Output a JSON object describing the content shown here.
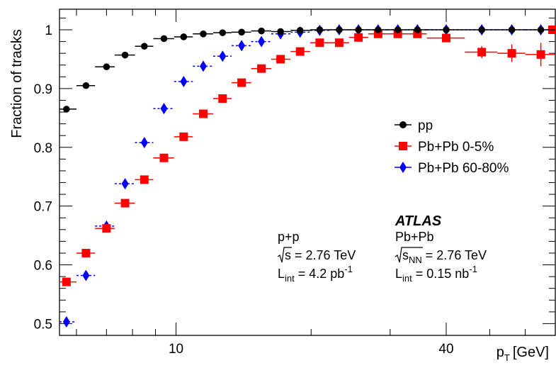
{
  "chart_data": {
    "type": "scatter",
    "xlabel": "p_T [GeV]",
    "xlabel_main": "p",
    "xlabel_sub": "T",
    "xlabel_unit": "[GeV]",
    "ylabel": "Fraction of tracks",
    "x_scale": "log",
    "xlim": [
      5.5,
      70
    ],
    "ylim": [
      0.48,
      1.035
    ],
    "x_ticks": [
      10,
      40
    ],
    "x_tick_labels": [
      "10",
      "40"
    ],
    "y_ticks": [
      0.5,
      0.6,
      0.7,
      0.8,
      0.9,
      1.0
    ],
    "y_tick_labels": [
      "0.5",
      "0.6",
      "0.7",
      "0.8",
      "0.9",
      "1"
    ],
    "grid": false,
    "legend_position": "right",
    "series": [
      {
        "name": "pp",
        "color": "#000000",
        "marker": "circle",
        "points": [
          {
            "x": 5.7,
            "y": 0.865,
            "xerr": [
              5.5,
              6.0
            ]
          },
          {
            "x": 6.3,
            "y": 0.905,
            "xerr": [
              6.0,
              6.6
            ]
          },
          {
            "x": 7.0,
            "y": 0.937,
            "xerr": [
              6.6,
              7.3
            ]
          },
          {
            "x": 7.7,
            "y": 0.957,
            "xerr": [
              7.3,
              8.1
            ]
          },
          {
            "x": 8.5,
            "y": 0.972,
            "xerr": [
              8.1,
              8.9
            ]
          },
          {
            "x": 9.4,
            "y": 0.985,
            "xerr": [
              8.9,
              9.9
            ]
          },
          {
            "x": 10.4,
            "y": 0.988,
            "xerr": [
              9.9,
              10.9
            ]
          },
          {
            "x": 11.5,
            "y": 0.993,
            "xerr": [
              10.9,
              12.1
            ]
          },
          {
            "x": 12.7,
            "y": 0.995,
            "xerr": [
              12.1,
              13.3
            ]
          },
          {
            "x": 14.0,
            "y": 0.996,
            "xerr": [
              13.3,
              14.7
            ]
          },
          {
            "x": 15.5,
            "y": 0.998,
            "xerr": [
              14.7,
              16.3
            ]
          },
          {
            "x": 17.1,
            "y": 0.997,
            "xerr": [
              16.3,
              18.0
            ]
          },
          {
            "x": 18.9,
            "y": 0.999,
            "xerr": [
              18.0,
              19.9
            ]
          },
          {
            "x": 20.9,
            "y": 1.0,
            "xerr": [
              19.9,
              22.0
            ]
          },
          {
            "x": 23.1,
            "y": 1.0,
            "xerr": [
              22.0,
              24.3
            ]
          },
          {
            "x": 25.5,
            "y": 1.0,
            "xerr": [
              24.3,
              26.8
            ]
          },
          {
            "x": 28.2,
            "y": 1.0,
            "xerr": [
              26.8,
              29.6
            ]
          },
          {
            "x": 31.2,
            "y": 1.0,
            "xerr": [
              29.6,
              32.8
            ]
          },
          {
            "x": 34.5,
            "y": 1.0,
            "xerr": [
              32.8,
              36.2
            ]
          },
          {
            "x": 40.0,
            "y": 1.0,
            "xerr": [
              36.2,
              44.0
            ]
          },
          {
            "x": 48.0,
            "y": 1.0,
            "xerr": [
              44.0,
              52.0
            ]
          },
          {
            "x": 56.0,
            "y": 1.0,
            "xerr": [
              52.0,
              60.0
            ]
          },
          {
            "x": 65.0,
            "y": 1.0,
            "xerr": [
              60.0,
              70.0
            ]
          }
        ]
      },
      {
        "name": "Pb+Pb 0-5%",
        "color": "#ff0000",
        "marker": "square",
        "points": [
          {
            "x": 5.7,
            "y": 0.571,
            "xerr": [
              5.5,
              6.0
            ]
          },
          {
            "x": 6.3,
            "y": 0.62,
            "xerr": [
              6.0,
              6.6
            ]
          },
          {
            "x": 7.0,
            "y": 0.662,
            "xerr": [
              6.6,
              7.3
            ]
          },
          {
            "x": 7.7,
            "y": 0.705,
            "xerr": [
              7.3,
              8.1
            ]
          },
          {
            "x": 8.5,
            "y": 0.745,
            "xerr": [
              8.1,
              8.9
            ]
          },
          {
            "x": 9.4,
            "y": 0.782,
            "xerr": [
              8.9,
              9.9
            ]
          },
          {
            "x": 10.4,
            "y": 0.818,
            "xerr": [
              9.9,
              10.9
            ]
          },
          {
            "x": 11.5,
            "y": 0.857,
            "xerr": [
              10.9,
              12.1
            ]
          },
          {
            "x": 12.7,
            "y": 0.883,
            "xerr": [
              12.1,
              13.3
            ]
          },
          {
            "x": 14.0,
            "y": 0.91,
            "xerr": [
              13.3,
              14.7
            ]
          },
          {
            "x": 15.5,
            "y": 0.934,
            "xerr": [
              14.7,
              16.3
            ]
          },
          {
            "x": 17.1,
            "y": 0.95,
            "xerr": [
              16.3,
              18.0
            ]
          },
          {
            "x": 18.9,
            "y": 0.963,
            "xerr": [
              18.0,
              19.9
            ]
          },
          {
            "x": 20.9,
            "y": 0.978,
            "xerr": [
              19.9,
              22.0
            ]
          },
          {
            "x": 23.1,
            "y": 0.978,
            "xerr": [
              22.0,
              24.3
            ]
          },
          {
            "x": 25.5,
            "y": 0.987,
            "xerr": [
              24.3,
              26.8
            ]
          },
          {
            "x": 28.2,
            "y": 0.993,
            "xerr": [
              26.8,
              29.6
            ]
          },
          {
            "x": 31.2,
            "y": 0.993,
            "xerr": [
              29.6,
              32.8
            ]
          },
          {
            "x": 34.5,
            "y": 0.993,
            "xerr": [
              32.8,
              36.2
            ]
          },
          {
            "x": 40.0,
            "y": 0.986,
            "xerr": [
              36.2,
              44.0
            ]
          },
          {
            "x": 48.0,
            "y": 0.962,
            "xerr": [
              44.0,
              52.0
            ],
            "yerr": 0.01
          },
          {
            "x": 56.0,
            "y": 0.96,
            "xerr": [
              52.0,
              60.0
            ],
            "yerr": 0.015
          },
          {
            "x": 65.0,
            "y": 0.958,
            "xerr": [
              60.0,
              70.0
            ],
            "yerr": 0.02
          },
          {
            "x": 69.0,
            "y": 1.0,
            "xerr": [
              67.5,
              70.0
            ]
          }
        ]
      },
      {
        "name": "Pb+Pb 60-80%",
        "color": "#0000ff",
        "marker": "diamond",
        "points": [
          {
            "x": 5.7,
            "y": 0.503,
            "xerr": [
              5.5,
              6.0
            ]
          },
          {
            "x": 6.3,
            "y": 0.582,
            "xerr": [
              6.0,
              6.6
            ]
          },
          {
            "x": 7.0,
            "y": 0.666,
            "xerr": [
              6.6,
              7.3
            ]
          },
          {
            "x": 7.7,
            "y": 0.738,
            "xerr": [
              7.3,
              8.1
            ]
          },
          {
            "x": 8.5,
            "y": 0.808,
            "xerr": [
              8.1,
              8.9
            ]
          },
          {
            "x": 9.4,
            "y": 0.866,
            "xerr": [
              8.9,
              9.9
            ]
          },
          {
            "x": 10.4,
            "y": 0.912,
            "xerr": [
              9.9,
              10.9
            ]
          },
          {
            "x": 11.5,
            "y": 0.938,
            "xerr": [
              10.9,
              12.1
            ]
          },
          {
            "x": 12.7,
            "y": 0.955,
            "xerr": [
              12.1,
              13.3
            ]
          },
          {
            "x": 14.0,
            "y": 0.973,
            "xerr": [
              13.3,
              14.7
            ]
          },
          {
            "x": 15.5,
            "y": 0.98,
            "xerr": [
              14.7,
              16.3
            ]
          },
          {
            "x": 17.1,
            "y": 0.993,
            "xerr": [
              16.3,
              18.0
            ]
          },
          {
            "x": 18.9,
            "y": 0.996,
            "xerr": [
              18.0,
              19.9
            ]
          },
          {
            "x": 20.9,
            "y": 0.999,
            "xerr": [
              19.9,
              22.0
            ]
          },
          {
            "x": 23.1,
            "y": 1.0,
            "xerr": [
              22.0,
              24.3
            ]
          },
          {
            "x": 25.5,
            "y": 1.0,
            "xerr": [
              24.3,
              26.8
            ]
          },
          {
            "x": 28.2,
            "y": 1.0,
            "xerr": [
              26.8,
              29.6
            ]
          },
          {
            "x": 31.2,
            "y": 1.0,
            "xerr": [
              29.6,
              32.8
            ]
          },
          {
            "x": 34.5,
            "y": 1.0,
            "xerr": [
              32.8,
              36.2
            ]
          },
          {
            "x": 40.0,
            "y": 1.0,
            "xerr": [
              36.2,
              44.0
            ]
          },
          {
            "x": 48.0,
            "y": 1.0,
            "xerr": [
              44.0,
              52.0
            ]
          },
          {
            "x": 56.0,
            "y": 1.0,
            "xerr": [
              52.0,
              60.0
            ]
          },
          {
            "x": 65.0,
            "y": 1.0,
            "xerr": [
              60.0,
              70.0
            ]
          }
        ]
      }
    ],
    "annotations": {
      "atlas": "ATLAS",
      "pp_block": {
        "system": "p+p",
        "energy_sym": "s",
        "energy_value": " = 2.76 TeV",
        "lumi_main": "L",
        "lumi_sub": "int",
        "lumi_value": " = 4.2 pb",
        "lumi_unit_sup": "-1"
      },
      "pbpb_block": {
        "system": "Pb+Pb",
        "energy_sym": "s",
        "energy_sub": "NN",
        "energy_value": " = 2.76 TeV",
        "lumi_main": "L",
        "lumi_sub": "int",
        "lumi_value": " = 0.15 nb",
        "lumi_unit_sup": "-1"
      }
    }
  }
}
